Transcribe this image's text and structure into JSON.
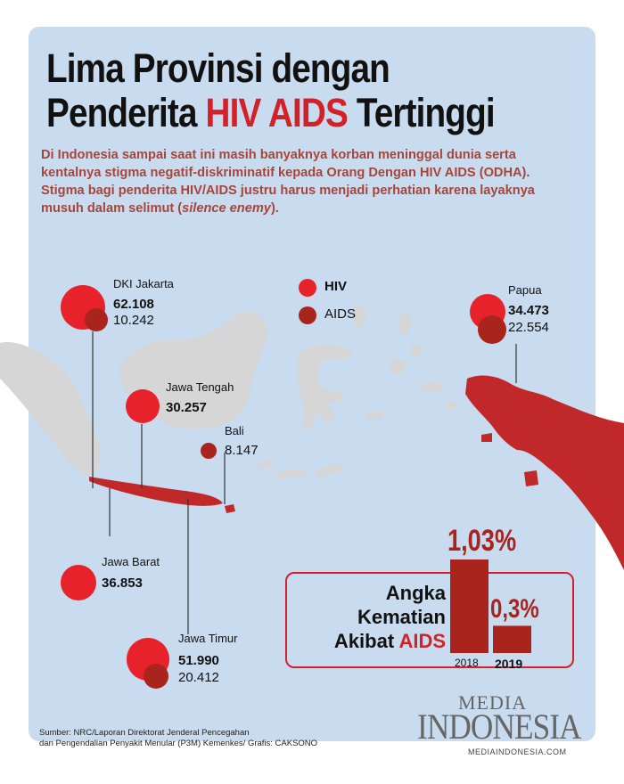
{
  "title": {
    "line1": "Lima Provinsi dengan",
    "line2_pre": "Penderita ",
    "line2_highlight": "HIV AIDS",
    "line2_post": " Tertinggi"
  },
  "intro": {
    "text": "Di Indonesia sampai saat ini masih banyaknya korban meninggal dunia serta kentalnya stigma negatif-diskriminatif kepada Orang Dengan HIV AIDS (ODHA). Stigma bagi penderita HIV/AIDS justru harus menjadi perhatian karena layaknya musuh dalam selimut (",
    "italic": "silence enemy",
    "end": ")."
  },
  "legend": {
    "hiv": "HIV",
    "aids": "AIDS"
  },
  "provinces": {
    "dki": {
      "name": "DKI Jakarta",
      "hiv": "62.108",
      "aids": "10.242"
    },
    "papua": {
      "name": "Papua",
      "hiv": "34.473",
      "aids": "22.554"
    },
    "jateng": {
      "name": "Jawa Tengah",
      "hiv": "30.257"
    },
    "bali": {
      "name": "Bali",
      "aids": "8.147"
    },
    "jabar": {
      "name": "Jawa Barat",
      "hiv": "36.853"
    },
    "jatim": {
      "name": "Jawa Timur",
      "hiv": "51.990",
      "aids": "20.412"
    }
  },
  "mortality": {
    "line1": "Angka",
    "line2": "Kematian",
    "line3_pre": "Akibat ",
    "line3_highlight": "AIDS",
    "bars": [
      {
        "year": "2018",
        "label": "1,03%",
        "value": 1.03
      },
      {
        "year": "2019",
        "label": "0,3%",
        "value": 0.3
      }
    ]
  },
  "source": {
    "line1": "Sumber: NRC/Laporan Direktorat Jenderal Pencegahan",
    "line2": "dan Pengendalian Penyakit Menular (P3M) Kemenkes/ Grafis: CAKSONO"
  },
  "logo": {
    "top": "MEDIA",
    "main": "INDONESIA",
    "url": "MEDIAINDONESIA.COM"
  },
  "colors": {
    "hiv": "#e8222a",
    "aids": "#a8241d",
    "panel": "#c9dcef",
    "land": "#d6d6d6"
  }
}
